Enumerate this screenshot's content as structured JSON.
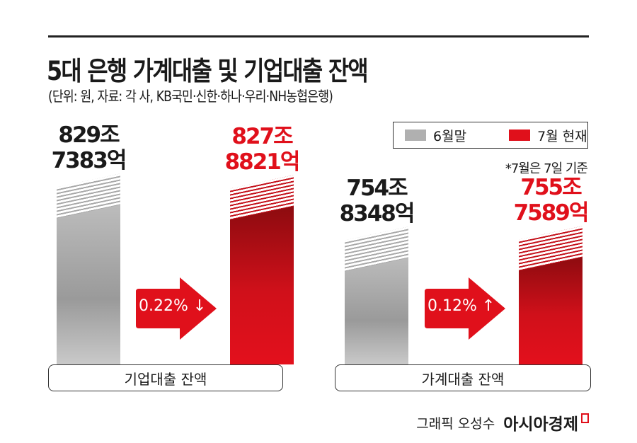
{
  "header": {
    "title": "5대 은행 가계대출 및 기업대출 잔액",
    "subtitle": "(단위: 원, 자료: 각 사, KB국민·신한·하나·우리·NH농협은행)"
  },
  "legend": [
    {
      "label": "6월말",
      "color": "#b0b0b0"
    },
    {
      "label": "7월 현재",
      "color": "#e0101b"
    }
  ],
  "note": "*7월은 7일 기준",
  "chart_data": {
    "type": "bar",
    "title": "5대 은행 가계대출 및 기업대출 잔액",
    "unit": "원",
    "categories": [
      "기업대출 잔액",
      "가계대출 잔액"
    ],
    "series": [
      {
        "name": "6월말",
        "values": [
          829.7383,
          754.8348
        ],
        "labels": [
          "829조\n7383억",
          "754조\n8348억"
        ]
      },
      {
        "name": "7월 현재",
        "values": [
          827.8821,
          755.7589
        ],
        "labels": [
          "827조\n8821억",
          "755조\n7589억"
        ]
      }
    ],
    "changes": [
      {
        "text": "0.22% ↓",
        "direction": "down"
      },
      {
        "text": "0.12% ↑",
        "direction": "up"
      }
    ],
    "ylim": [
      600,
      840
    ]
  },
  "footer": {
    "credit": "그래픽 오성수",
    "brand": "아시아경제"
  }
}
